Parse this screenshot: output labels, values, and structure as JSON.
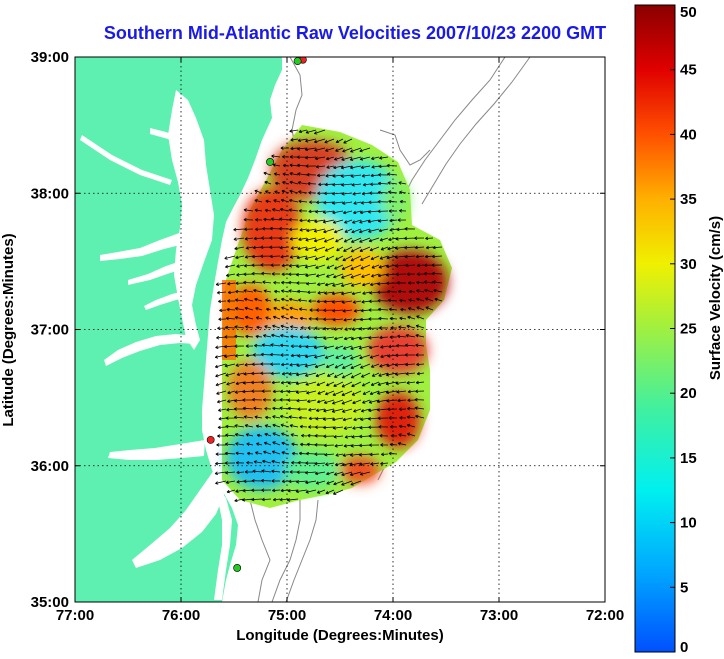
{
  "title": "Southern Mid-Atlantic Raw Velocities 2007/10/23 2200 GMT",
  "colors": {
    "land": "#5ef0b0",
    "water": "#ffffff",
    "title": "#1a1ae6",
    "bathymetry": "#888888",
    "station_green": "#22cc22",
    "station_red": "#ee2222"
  },
  "map": {
    "x_axis": {
      "label": "Longitude (Degrees:Minutes)",
      "range": [
        -77,
        -72
      ],
      "ticks": [
        {
          "value": -77,
          "label": "77:00"
        },
        {
          "value": -76,
          "label": "76:00"
        },
        {
          "value": -75,
          "label": "75:00"
        },
        {
          "value": -74,
          "label": "74:00"
        },
        {
          "value": -73,
          "label": "73:00"
        },
        {
          "value": -72,
          "label": "72:00"
        }
      ]
    },
    "y_axis": {
      "label": "Latitude (Degrees:Minutes)",
      "range": [
        35,
        39
      ],
      "ticks": [
        {
          "value": 39,
          "label": "39:00"
        },
        {
          "value": 38,
          "label": "38:00"
        },
        {
          "value": 37,
          "label": "37:00"
        },
        {
          "value": 36,
          "label": "36:00"
        },
        {
          "value": 35,
          "label": "35:00"
        }
      ]
    },
    "grid": "dotted",
    "stations": [
      {
        "lon": -74.85,
        "lat": 38.98,
        "color": "red"
      },
      {
        "lon": -74.9,
        "lat": 38.97,
        "color": "green"
      },
      {
        "lon": -75.16,
        "lat": 38.23,
        "color": "green"
      },
      {
        "lon": -75.72,
        "lat": 36.19,
        "color": "red"
      },
      {
        "lon": -75.47,
        "lat": 35.25,
        "color": "green"
      }
    ]
  },
  "colorbar": {
    "label": "Surface Velocity (cm/s)",
    "range": [
      0,
      50
    ],
    "ticks": [
      {
        "value": 50,
        "label": "50"
      },
      {
        "value": 45,
        "label": "45"
      },
      {
        "value": 40,
        "label": "40"
      },
      {
        "value": 35,
        "label": "35"
      },
      {
        "value": 30,
        "label": "30"
      },
      {
        "value": 25,
        "label": "25"
      },
      {
        "value": 20,
        "label": "20"
      },
      {
        "value": 15,
        "label": "15"
      },
      {
        "value": 10,
        "label": "10"
      },
      {
        "value": 5,
        "label": "5"
      },
      {
        "value": 0,
        "label": "0"
      }
    ]
  }
}
